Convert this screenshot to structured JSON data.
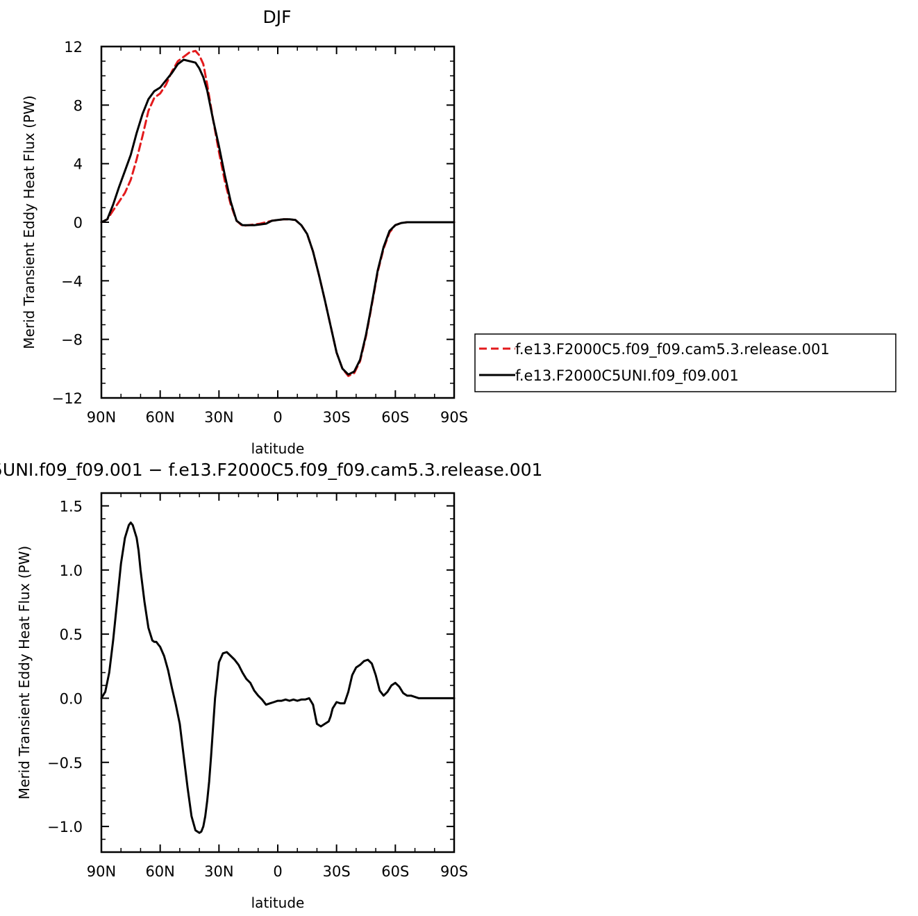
{
  "chart_data": [
    {
      "type": "line",
      "title": "DJF",
      "xlabel": "latitude",
      "ylabel": "Merid Transient Eddy Heat Flux (PW)",
      "xlim": [
        90,
        -90
      ],
      "ylim": [
        -12,
        12
      ],
      "x_tick_values": [
        90,
        60,
        30,
        0,
        -30,
        -60,
        -90
      ],
      "x_tick_labels": [
        "90N",
        "60N",
        "30N",
        "0",
        "30S",
        "60S",
        "90S"
      ],
      "y_tick_values": [
        12,
        8,
        4,
        0,
        -4,
        -8,
        -12
      ],
      "y_tick_labels": [
        "12",
        "8",
        "4",
        "0",
        "−4",
        "−8",
        "−12"
      ],
      "legend_position": "right",
      "series": [
        {
          "name": "f.e13.F2000C5.f09_f09.cam5.3.release.001",
          "color": "#e31a1c",
          "dash": "dashed",
          "x": [
            90,
            87,
            84,
            81,
            78,
            75,
            72,
            69,
            66,
            63,
            60,
            57,
            54,
            51,
            48,
            45,
            42,
            40,
            38,
            36,
            33,
            30,
            27,
            24,
            21,
            18,
            15,
            12,
            9,
            6,
            3,
            0,
            -3,
            -6,
            -9,
            -12,
            -15,
            -18,
            -21,
            -24,
            -27,
            -30,
            -33,
            -36,
            -39,
            -42,
            -45,
            -47,
            -49,
            -51,
            -54,
            -57,
            -60,
            -63,
            -66,
            -69,
            -72,
            -75,
            -78,
            -81,
            -84,
            -87,
            -90
          ],
          "y": [
            0,
            0.2,
            0.8,
            1.4,
            2.0,
            2.9,
            4.3,
            5.9,
            7.6,
            8.5,
            8.8,
            9.4,
            10.3,
            11.0,
            11.3,
            11.6,
            11.7,
            11.4,
            10.8,
            9.4,
            7.0,
            4.8,
            2.8,
            1.2,
            0.1,
            -0.25,
            -0.2,
            -0.15,
            -0.1,
            0,
            0.1,
            0.15,
            0.2,
            0.2,
            0.15,
            -0.2,
            -0.8,
            -2.0,
            -3.6,
            -5.3,
            -7.1,
            -8.9,
            -10.0,
            -10.5,
            -10.3,
            -9.5,
            -7.8,
            -6.4,
            -4.9,
            -3.4,
            -1.8,
            -0.7,
            -0.2,
            -0.05,
            0,
            0,
            0,
            0,
            0,
            0,
            0,
            0,
            0
          ]
        },
        {
          "name": "f.e13.F2000C5UNI.f09_f09.001",
          "color": "#000000",
          "dash": "solid",
          "x": [
            90,
            87,
            84,
            81,
            78,
            75,
            72,
            69,
            66,
            63,
            60,
            57,
            54,
            51,
            48,
            45,
            42,
            40,
            38,
            36,
            33,
            30,
            27,
            24,
            21,
            18,
            15,
            12,
            9,
            6,
            3,
            0,
            -3,
            -6,
            -9,
            -12,
            -15,
            -18,
            -21,
            -24,
            -27,
            -30,
            -33,
            -36,
            -39,
            -42,
            -45,
            -47,
            -49,
            -51,
            -54,
            -57,
            -60,
            -63,
            -66,
            -69,
            -72,
            -75,
            -78,
            -81,
            -84,
            -87,
            -90
          ],
          "y": [
            0,
            0.2,
            1.2,
            2.4,
            3.5,
            4.6,
            6.1,
            7.4,
            8.4,
            8.95,
            9.2,
            9.7,
            10.2,
            10.8,
            11.1,
            11.0,
            10.9,
            10.5,
            9.9,
            9.0,
            7.0,
            5.2,
            3.2,
            1.4,
            0.1,
            -0.2,
            -0.2,
            -0.2,
            -0.15,
            -0.1,
            0.1,
            0.15,
            0.2,
            0.2,
            0.15,
            -0.2,
            -0.8,
            -2.0,
            -3.6,
            -5.3,
            -7.1,
            -8.9,
            -10.0,
            -10.4,
            -10.2,
            -9.4,
            -7.7,
            -6.3,
            -4.8,
            -3.3,
            -1.7,
            -0.6,
            -0.2,
            -0.05,
            0,
            0,
            0,
            0,
            0,
            0,
            0,
            0,
            0
          ]
        }
      ]
    },
    {
      "type": "line",
      "title": "5UNI.f09_f09.001  −  f.e13.F2000C5.f09_f09.cam5.3.release.001",
      "xlabel": "latitude",
      "ylabel": "Merid Transient Eddy Heat Flux (PW)",
      "xlim": [
        90,
        -90
      ],
      "ylim": [
        -1.2,
        1.6
      ],
      "x_tick_values": [
        90,
        60,
        30,
        0,
        -30,
        -60,
        -90
      ],
      "x_tick_labels": [
        "90N",
        "60N",
        "30N",
        "0",
        "30S",
        "60S",
        "90S"
      ],
      "y_tick_values": [
        1.5,
        1.0,
        0.5,
        0.0,
        -0.5,
        -1.0
      ],
      "y_tick_labels": [
        "1.5",
        "1.0",
        "0.5",
        "0.0",
        "−0.5",
        "−1.0"
      ],
      "series": [
        {
          "name": "",
          "color": "#000000",
          "dash": "solid",
          "x": [
            90,
            88,
            86,
            84,
            82,
            80,
            78,
            76,
            75,
            74,
            73,
            72,
            71,
            70,
            68,
            66,
            64,
            63,
            62,
            61,
            60,
            58,
            56,
            54,
            52,
            50,
            48,
            46,
            44,
            42,
            40,
            39,
            38,
            37,
            36,
            35,
            34,
            32,
            30,
            28,
            26,
            24,
            22,
            21,
            20,
            18,
            16,
            14,
            12,
            10,
            8,
            6,
            4,
            2,
            0,
            -2,
            -4,
            -6,
            -8,
            -10,
            -12,
            -14,
            -16,
            -18,
            -20,
            -22,
            -24,
            -26,
            -27,
            -28,
            -30,
            -32,
            -34,
            -36,
            -38,
            -40,
            -42,
            -44,
            -46,
            -48,
            -50,
            -52,
            -54,
            -56,
            -58,
            -60,
            -62,
            -64,
            -66,
            -68,
            -70,
            -72,
            -74,
            -76,
            -78,
            -80,
            -82,
            -84,
            -86,
            -88,
            -90
          ],
          "y": [
            0.0,
            0.05,
            0.2,
            0.45,
            0.75,
            1.05,
            1.25,
            1.35,
            1.37,
            1.35,
            1.3,
            1.25,
            1.15,
            1.0,
            0.75,
            0.55,
            0.45,
            0.44,
            0.44,
            0.42,
            0.4,
            0.33,
            0.22,
            0.08,
            -0.05,
            -0.2,
            -0.45,
            -0.7,
            -0.92,
            -1.03,
            -1.05,
            -1.04,
            -1.0,
            -0.92,
            -0.8,
            -0.65,
            -0.45,
            0.0,
            0.28,
            0.35,
            0.36,
            0.33,
            0.3,
            0.28,
            0.26,
            0.2,
            0.15,
            0.12,
            0.06,
            0.02,
            -0.01,
            -0.05,
            -0.04,
            -0.03,
            -0.02,
            -0.02,
            -0.01,
            -0.02,
            -0.01,
            -0.02,
            -0.01,
            -0.01,
            0.0,
            -0.05,
            -0.2,
            -0.22,
            -0.2,
            -0.18,
            -0.14,
            -0.08,
            -0.03,
            -0.04,
            -0.04,
            0.05,
            0.18,
            0.24,
            0.26,
            0.29,
            0.3,
            0.27,
            0.18,
            0.06,
            0.02,
            0.05,
            0.1,
            0.12,
            0.09,
            0.04,
            0.02,
            0.02,
            0.01,
            0.0,
            0.0,
            0.0,
            0.0,
            0.0,
            0.0,
            0.0,
            0.0,
            0.0,
            0.0
          ]
        }
      ]
    }
  ]
}
